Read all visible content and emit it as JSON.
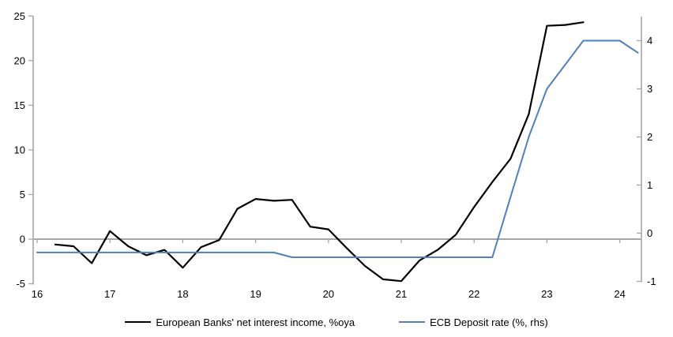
{
  "chart_data": {
    "type": "line",
    "title": "",
    "x_axis": {
      "ticks": [
        16,
        17,
        18,
        19,
        20,
        21,
        22,
        23,
        24
      ],
      "range": [
        16,
        24.3
      ]
    },
    "left_axis": {
      "ticks": [
        25,
        20,
        15,
        10,
        5,
        0,
        -5
      ],
      "range": [
        -5,
        25
      ]
    },
    "right_axis": {
      "ticks": [
        4,
        3,
        2,
        1,
        0,
        -1
      ],
      "range": [
        -1,
        4.4
      ]
    },
    "grid": "zero-line-only",
    "legend_position": "bottom",
    "colors": {
      "nii_line": "#000000",
      "deposit_rate_line": "#4e81bd",
      "axis_gray": "#a6a6a6"
    },
    "series": [
      {
        "id": "nii",
        "name": "European Banks' net interest income, %oya",
        "axis": "left",
        "color": "#000000",
        "stroke_width": 2.2,
        "x": [
          16.25,
          16.5,
          16.75,
          17.0,
          17.25,
          17.5,
          17.75,
          18.0,
          18.25,
          18.5,
          18.75,
          19.0,
          19.25,
          19.5,
          19.75,
          20.0,
          20.25,
          20.5,
          20.75,
          21.0,
          21.25,
          21.5,
          21.75,
          22.0,
          22.25,
          22.5,
          22.75,
          23.0,
          23.25,
          23.5
        ],
        "values": [
          -0.6,
          -0.8,
          -2.7,
          0.9,
          -0.8,
          -1.8,
          -1.2,
          -3.2,
          -0.9,
          -0.1,
          3.4,
          4.5,
          4.3,
          4.4,
          1.4,
          1.1,
          -1.0,
          -3.0,
          -4.5,
          -4.7,
          -2.4,
          -1.2,
          0.5,
          3.6,
          6.4,
          9.0,
          14.0,
          23.9,
          24.0,
          24.3
        ]
      },
      {
        "id": "ecb-deposit-rate",
        "name": "ECB Deposit rate (%, rhs)",
        "axis": "right",
        "color": "#4e81bd",
        "stroke_width": 2,
        "x": [
          16.0,
          16.25,
          16.5,
          16.75,
          17.0,
          17.25,
          17.5,
          17.75,
          18.0,
          18.25,
          18.5,
          18.75,
          19.0,
          19.25,
          19.5,
          19.75,
          20.0,
          20.25,
          20.5,
          20.75,
          21.0,
          21.25,
          21.5,
          21.75,
          22.0,
          22.25,
          22.5,
          22.75,
          23.0,
          23.25,
          23.5,
          23.75,
          24.0,
          24.25
        ],
        "values": [
          -0.4,
          -0.4,
          -0.4,
          -0.4,
          -0.4,
          -0.4,
          -0.4,
          -0.4,
          -0.4,
          -0.4,
          -0.4,
          -0.4,
          -0.4,
          -0.4,
          -0.5,
          -0.5,
          -0.5,
          -0.5,
          -0.5,
          -0.5,
          -0.5,
          -0.5,
          -0.5,
          -0.5,
          -0.5,
          -0.5,
          0.75,
          2.0,
          3.0,
          3.5,
          4.0,
          4.0,
          4.0,
          3.75
        ]
      }
    ]
  }
}
